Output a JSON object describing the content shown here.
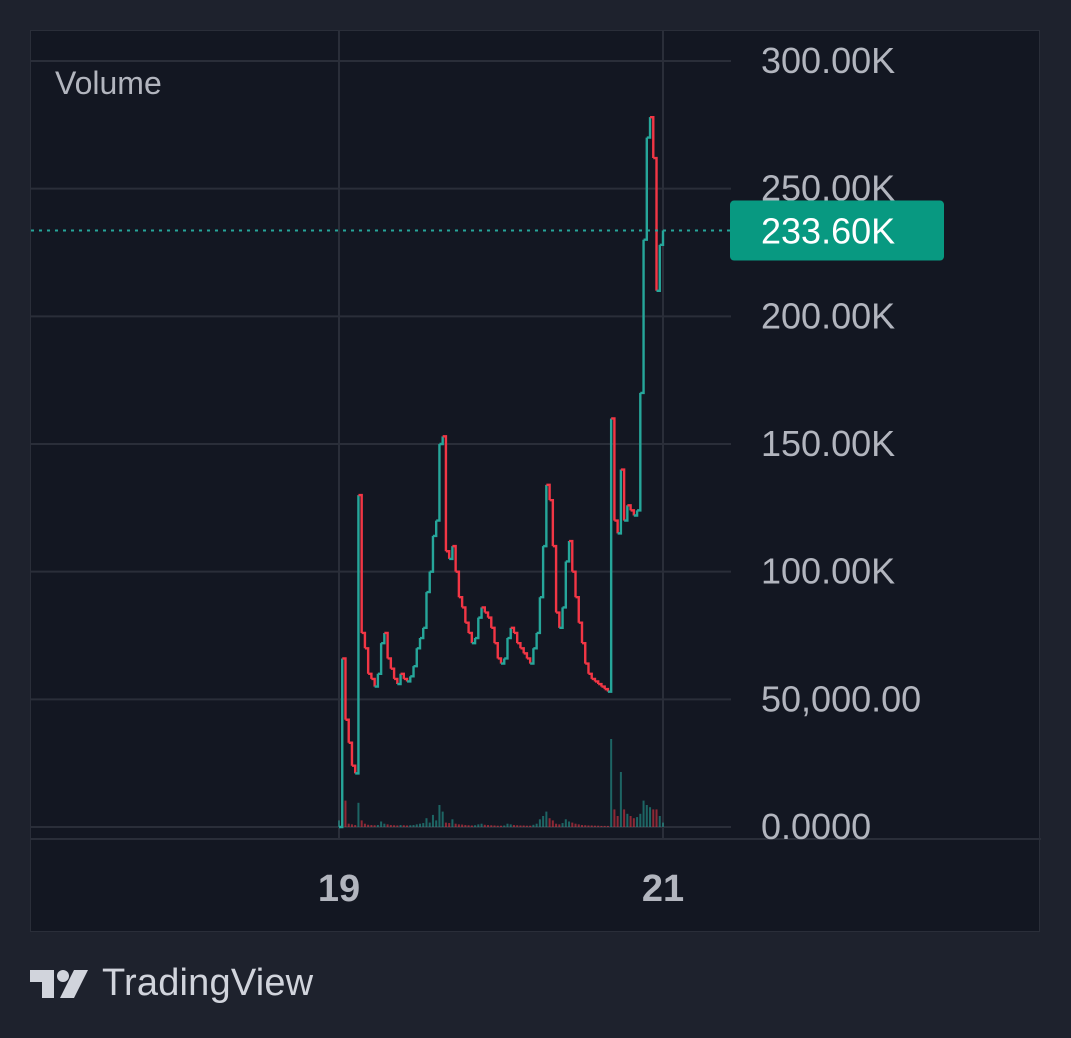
{
  "chart_data": {
    "type": "line",
    "title": "Volume",
    "xlabel": "",
    "ylabel": "",
    "ylim": [
      0,
      300000
    ],
    "y_ticks": [
      {
        "value": 300000,
        "label": "300.00K"
      },
      {
        "value": 250000,
        "label": "250.00K"
      },
      {
        "value": 200000,
        "label": "200.00K"
      },
      {
        "value": 150000,
        "label": "150.00K"
      },
      {
        "value": 100000,
        "label": "100.00K"
      },
      {
        "value": 50000,
        "label": "50,000.00"
      },
      {
        "value": 0,
        "label": "0.0000"
      }
    ],
    "xlim": [
      18.0,
      21.9
    ],
    "x_ticks": [
      {
        "value": 19,
        "label": "19"
      },
      {
        "value": 21,
        "label": "21"
      }
    ],
    "grid": true,
    "last_value": 233600,
    "last_value_label": "233.60K",
    "colors": {
      "up": "#26a69a",
      "down": "#f23645",
      "badge": "#089981",
      "grid": "#2a2e39",
      "text": "#b2b5be"
    },
    "series": [
      {
        "values": [
          [
            19.0,
            0
          ],
          [
            19.02,
            66000
          ],
          [
            19.04,
            42000
          ],
          [
            19.06,
            33000
          ],
          [
            19.08,
            24000
          ],
          [
            19.1,
            21000
          ],
          [
            19.12,
            130000
          ],
          [
            19.14,
            76000
          ],
          [
            19.16,
            70000
          ],
          [
            19.18,
            60000
          ],
          [
            19.2,
            58000
          ],
          [
            19.22,
            55000
          ],
          [
            19.24,
            60000
          ],
          [
            19.26,
            72000
          ],
          [
            19.28,
            76000
          ],
          [
            19.3,
            66000
          ],
          [
            19.32,
            62000
          ],
          [
            19.34,
            58000
          ],
          [
            19.36,
            56000
          ],
          [
            19.38,
            60000
          ],
          [
            19.4,
            58000
          ],
          [
            19.42,
            57000
          ],
          [
            19.44,
            59000
          ],
          [
            19.46,
            63000
          ],
          [
            19.48,
            70000
          ],
          [
            19.5,
            74000
          ],
          [
            19.52,
            78000
          ],
          [
            19.54,
            92000
          ],
          [
            19.56,
            100000
          ],
          [
            19.58,
            114000
          ],
          [
            19.6,
            120000
          ],
          [
            19.62,
            150000
          ],
          [
            19.64,
            153000
          ],
          [
            19.66,
            108000
          ],
          [
            19.68,
            105000
          ],
          [
            19.7,
            110000
          ],
          [
            19.72,
            100000
          ],
          [
            19.74,
            90000
          ],
          [
            19.76,
            86000
          ],
          [
            19.78,
            80000
          ],
          [
            19.8,
            76000
          ],
          [
            19.82,
            72000
          ],
          [
            19.84,
            74000
          ],
          [
            19.86,
            82000
          ],
          [
            19.88,
            86000
          ],
          [
            19.9,
            84000
          ],
          [
            19.92,
            82000
          ],
          [
            19.94,
            78000
          ],
          [
            19.96,
            72000
          ],
          [
            19.98,
            66000
          ],
          [
            20.0,
            64000
          ],
          [
            20.02,
            66000
          ],
          [
            20.04,
            74000
          ],
          [
            20.06,
            78000
          ],
          [
            20.08,
            76000
          ],
          [
            20.1,
            72000
          ],
          [
            20.12,
            70000
          ],
          [
            20.14,
            68000
          ],
          [
            20.16,
            66000
          ],
          [
            20.18,
            64000
          ],
          [
            20.2,
            70000
          ],
          [
            20.22,
            76000
          ],
          [
            20.24,
            90000
          ],
          [
            20.26,
            110000
          ],
          [
            20.28,
            134000
          ],
          [
            20.3,
            128000
          ],
          [
            20.32,
            110000
          ],
          [
            20.34,
            84000
          ],
          [
            20.36,
            78000
          ],
          [
            20.38,
            86000
          ],
          [
            20.4,
            104000
          ],
          [
            20.42,
            112000
          ],
          [
            20.44,
            100000
          ],
          [
            20.46,
            90000
          ],
          [
            20.48,
            80000
          ],
          [
            20.5,
            72000
          ],
          [
            20.52,
            64000
          ],
          [
            20.54,
            60000
          ],
          [
            20.56,
            58000
          ],
          [
            20.58,
            57000
          ],
          [
            20.6,
            56000
          ],
          [
            20.62,
            55000
          ],
          [
            20.64,
            54000
          ],
          [
            20.66,
            53000
          ],
          [
            20.68,
            160000
          ],
          [
            20.7,
            120000
          ],
          [
            20.72,
            115000
          ],
          [
            20.74,
            140000
          ],
          [
            20.76,
            120000
          ],
          [
            20.78,
            126000
          ],
          [
            20.8,
            124000
          ],
          [
            20.82,
            122000
          ],
          [
            20.84,
            124000
          ],
          [
            20.86,
            170000
          ],
          [
            20.88,
            230000
          ],
          [
            20.9,
            270000
          ],
          [
            20.92,
            278000
          ],
          [
            20.94,
            262000
          ],
          [
            20.96,
            210000
          ],
          [
            20.98,
            228000
          ],
          [
            21.0,
            233600
          ]
        ]
      },
      {
        "type": "bar",
        "values": [
          [
            19.0,
            3000
          ],
          [
            19.02,
            1500
          ],
          [
            19.04,
            12000
          ],
          [
            19.06,
            1500
          ],
          [
            19.08,
            1200
          ],
          [
            19.1,
            900
          ],
          [
            19.12,
            11000
          ],
          [
            19.14,
            3000
          ],
          [
            19.16,
            1500
          ],
          [
            19.18,
            1000
          ],
          [
            19.2,
            900
          ],
          [
            19.22,
            800
          ],
          [
            19.24,
            900
          ],
          [
            19.26,
            2500
          ],
          [
            19.28,
            1500
          ],
          [
            19.3,
            1200
          ],
          [
            19.32,
            900
          ],
          [
            19.34,
            800
          ],
          [
            19.36,
            700
          ],
          [
            19.38,
            900
          ],
          [
            19.4,
            800
          ],
          [
            19.42,
            700
          ],
          [
            19.44,
            800
          ],
          [
            19.46,
            900
          ],
          [
            19.48,
            1200
          ],
          [
            19.5,
            1500
          ],
          [
            19.52,
            1800
          ],
          [
            19.54,
            4000
          ],
          [
            19.56,
            2000
          ],
          [
            19.58,
            5500
          ],
          [
            19.6,
            3000
          ],
          [
            19.62,
            10000
          ],
          [
            19.64,
            7000
          ],
          [
            19.66,
            2000
          ],
          [
            19.68,
            1800
          ],
          [
            19.7,
            3500
          ],
          [
            19.72,
            1500
          ],
          [
            19.74,
            1200
          ],
          [
            19.76,
            1100
          ],
          [
            19.78,
            900
          ],
          [
            19.8,
            800
          ],
          [
            19.82,
            700
          ],
          [
            19.84,
            800
          ],
          [
            19.86,
            1200
          ],
          [
            19.88,
            1500
          ],
          [
            19.9,
            1000
          ],
          [
            19.92,
            900
          ],
          [
            19.94,
            800
          ],
          [
            19.96,
            700
          ],
          [
            19.98,
            600
          ],
          [
            20.0,
            600
          ],
          [
            20.02,
            700
          ],
          [
            20.04,
            1500
          ],
          [
            20.06,
            1200
          ],
          [
            20.08,
            900
          ],
          [
            20.1,
            800
          ],
          [
            20.12,
            700
          ],
          [
            20.14,
            700
          ],
          [
            20.16,
            600
          ],
          [
            20.18,
            600
          ],
          [
            20.2,
            1000
          ],
          [
            20.22,
            1500
          ],
          [
            20.24,
            3500
          ],
          [
            20.26,
            5000
          ],
          [
            20.28,
            7000
          ],
          [
            20.3,
            4000
          ],
          [
            20.32,
            3000
          ],
          [
            20.34,
            1500
          ],
          [
            20.36,
            1200
          ],
          [
            20.38,
            1800
          ],
          [
            20.4,
            3500
          ],
          [
            20.42,
            2500
          ],
          [
            20.44,
            2000
          ],
          [
            20.46,
            1500
          ],
          [
            20.48,
            1200
          ],
          [
            20.5,
            900
          ],
          [
            20.52,
            800
          ],
          [
            20.54,
            700
          ],
          [
            20.56,
            700
          ],
          [
            20.58,
            600
          ],
          [
            20.6,
            600
          ],
          [
            20.62,
            500
          ],
          [
            20.64,
            500
          ],
          [
            20.66,
            500
          ],
          [
            20.68,
            40000
          ],
          [
            20.7,
            8000
          ],
          [
            20.72,
            5000
          ],
          [
            20.74,
            25000
          ],
          [
            20.76,
            8000
          ],
          [
            20.78,
            6000
          ],
          [
            20.8,
            5000
          ],
          [
            20.82,
            4000
          ],
          [
            20.84,
            4500
          ],
          [
            20.86,
            6000
          ],
          [
            20.88,
            12000
          ],
          [
            20.9,
            10000
          ],
          [
            20.92,
            9000
          ],
          [
            20.94,
            8000
          ],
          [
            20.96,
            8000
          ],
          [
            20.98,
            5000
          ],
          [
            21.0,
            2000
          ]
        ]
      }
    ]
  },
  "brand": "TradingView"
}
